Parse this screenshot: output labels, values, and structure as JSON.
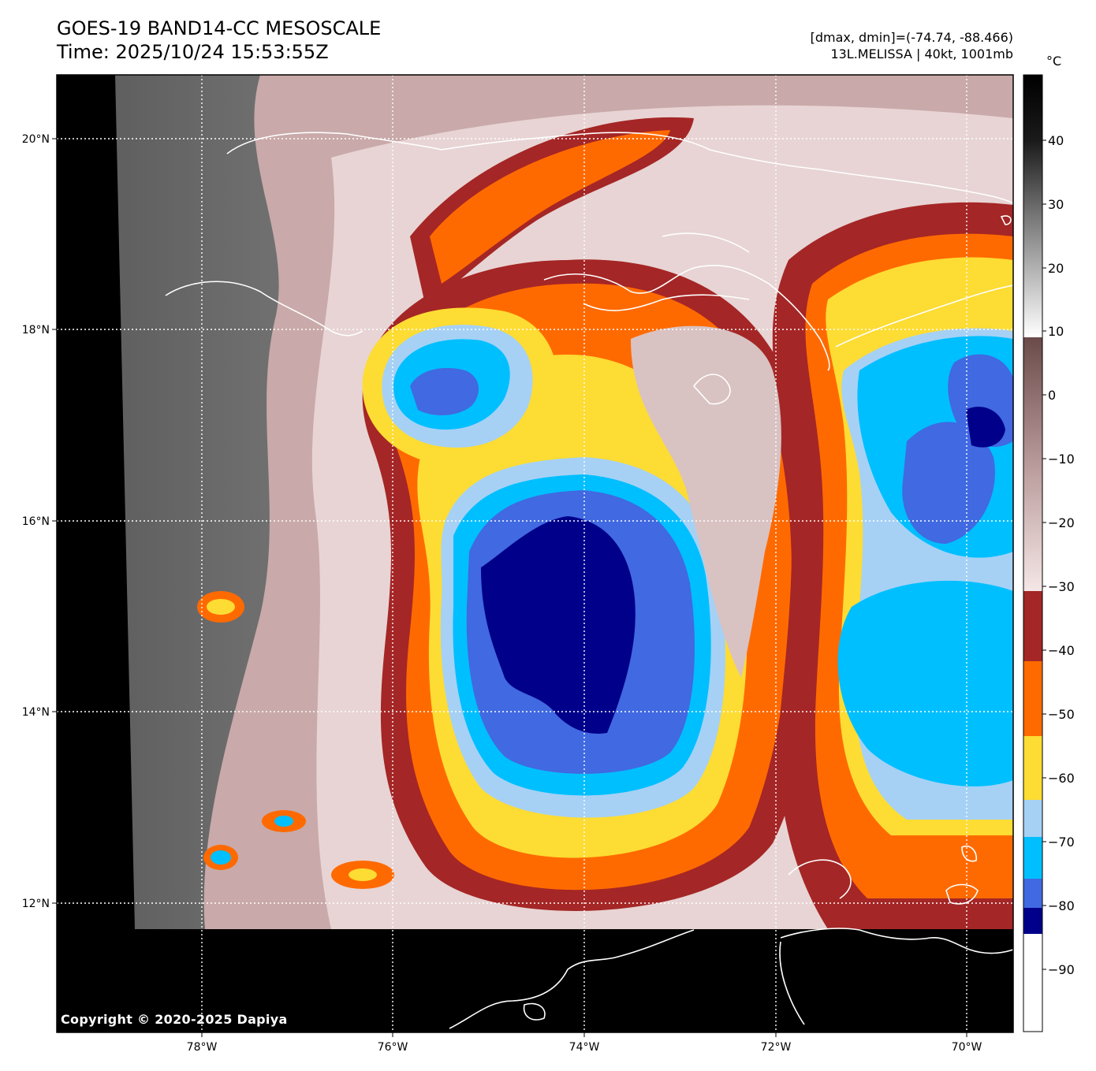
{
  "header": {
    "title_line1": "GOES-19 BAND14-CC MESOSCALE",
    "title_line2": "Time: 2025/10/24 15:53:55Z",
    "range_info": "[dmax, dmin]=(-74.74, -88.466)",
    "storm_info": "13L.MELISSA | 40kt, 1001mb"
  },
  "axes": {
    "lat_labels": [
      "20°N",
      "18°N",
      "16°N",
      "14°N",
      "12°N"
    ],
    "lon_labels": [
      "78°W",
      "76°W",
      "74°W",
      "72°W",
      "70°W"
    ]
  },
  "colorbar": {
    "unit": "°C",
    "ticks": [
      "40",
      "30",
      "20",
      "10",
      "0",
      "−10",
      "−20",
      "−30",
      "−40",
      "−50",
      "−60",
      "−70",
      "−80",
      "−90"
    ]
  },
  "copyright": "Copyright © 2020-2025 Dapiya",
  "colors": {
    "nodata": "#000000",
    "warm_gray": "#7a7a7a",
    "mid": "#a88080",
    "pink": "#eddcdc",
    "brown_red": "#a52626",
    "orange": "#ff6a00",
    "yellow": "#fddc33",
    "light_blue": "#a6d1f5",
    "cyan": "#00bfff",
    "royal_blue": "#4169e1",
    "navy": "#00008b",
    "coast": "#ffffff"
  }
}
